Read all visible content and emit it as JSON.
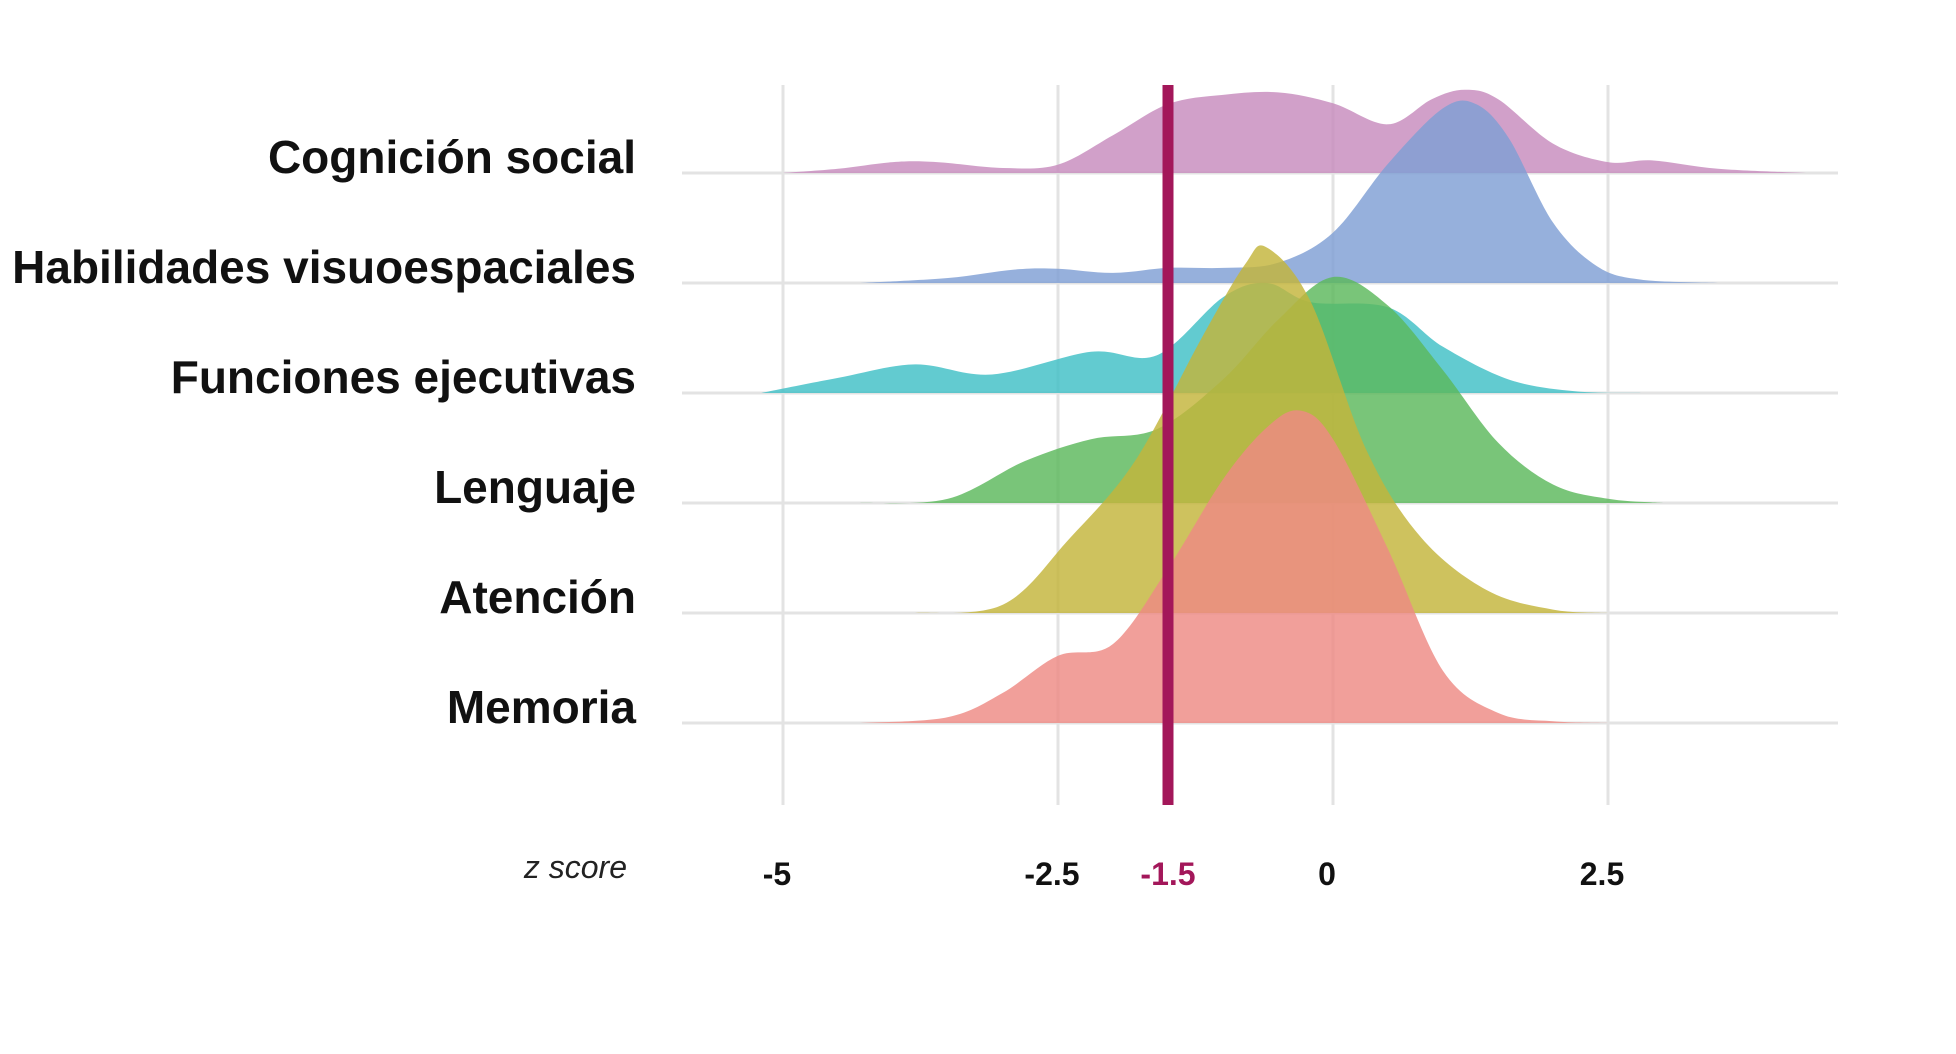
{
  "chart_data": {
    "type": "ridgeline",
    "xlabel": "z score",
    "xlim": [
      -7,
      4.8
    ],
    "xticks": [
      {
        "value": -5,
        "label": "-5"
      },
      {
        "value": -2.5,
        "label": "-2.5"
      },
      {
        "value": 0,
        "label": "0"
      },
      {
        "value": 2.5,
        "label": "2.5"
      }
    ],
    "threshold": {
      "value": -1.5,
      "label": "-1.5",
      "color": "#a3175a"
    },
    "grid": true,
    "series": [
      {
        "name": "Cognición social",
        "color": "#c78bbd",
        "x": [
          -5.0,
          -4.5,
          -4.0,
          -3.6,
          -3.0,
          -2.5,
          -2.0,
          -1.5,
          -1.0,
          -0.5,
          0.0,
          0.5,
          0.9,
          1.2,
          1.5,
          2.0,
          2.5,
          2.9,
          3.5,
          4.3
        ],
        "density": [
          0.0,
          0.05,
          0.13,
          0.13,
          0.06,
          0.1,
          0.45,
          0.82,
          0.93,
          0.96,
          0.83,
          0.58,
          0.88,
          0.99,
          0.88,
          0.35,
          0.13,
          0.15,
          0.05,
          0.0
        ]
      },
      {
        "name": "Habilidades visuoespaciales",
        "color": "#7f9fd4",
        "x": [
          -4.3,
          -3.5,
          -2.9,
          -2.5,
          -2.0,
          -1.5,
          -1.0,
          -0.5,
          0.0,
          0.5,
          1.0,
          1.3,
          1.6,
          2.0,
          2.4,
          2.8,
          3.5
        ],
        "density": [
          0.0,
          0.06,
          0.16,
          0.17,
          0.12,
          0.18,
          0.18,
          0.24,
          0.6,
          1.42,
          2.08,
          2.13,
          1.72,
          0.72,
          0.2,
          0.04,
          0.0
        ]
      },
      {
        "name": "Funciones ejecutivas",
        "color": "#3fc0c6",
        "x": [
          -5.2,
          -4.5,
          -3.8,
          -3.1,
          -2.2,
          -1.6,
          -1.0,
          -0.6,
          -0.2,
          0.5,
          1.0,
          1.6,
          2.2,
          2.8
        ],
        "density": [
          0.0,
          0.18,
          0.34,
          0.22,
          0.49,
          0.45,
          1.14,
          1.31,
          1.08,
          1.02,
          0.55,
          0.16,
          0.02,
          0.0
        ]
      },
      {
        "name": "Lenguaje",
        "color": "#5cb85c",
        "x": [
          -4.3,
          -3.5,
          -2.8,
          -2.2,
          -1.6,
          -1.0,
          -0.5,
          0.0,
          0.5,
          1.0,
          1.5,
          2.0,
          2.5,
          3.0
        ],
        "density": [
          0.0,
          0.05,
          0.5,
          0.76,
          0.88,
          1.47,
          2.18,
          2.69,
          2.35,
          1.58,
          0.72,
          0.22,
          0.05,
          0.0
        ]
      },
      {
        "name": "Atención",
        "color": "#c3b53a",
        "x": [
          -3.8,
          -3.0,
          -2.4,
          -1.8,
          -1.2,
          -0.8,
          -0.6,
          -0.2,
          0.3,
          0.8,
          1.4,
          2.0,
          2.5
        ],
        "density": [
          0.0,
          0.1,
          0.88,
          1.81,
          3.26,
          4.15,
          4.35,
          3.7,
          1.95,
          0.9,
          0.27,
          0.04,
          0.0
        ]
      },
      {
        "name": "Memoria",
        "color": "#ee8a84",
        "x": [
          -4.3,
          -3.5,
          -3.0,
          -2.5,
          -2.0,
          -1.5,
          -1.0,
          -0.6,
          -0.3,
          0.0,
          0.5,
          1.0,
          1.5,
          2.0,
          2.5
        ],
        "density": [
          0.0,
          0.07,
          0.36,
          0.8,
          0.94,
          1.84,
          2.9,
          3.52,
          3.72,
          3.38,
          2.07,
          0.62,
          0.12,
          0.02,
          0.0
        ]
      }
    ]
  }
}
